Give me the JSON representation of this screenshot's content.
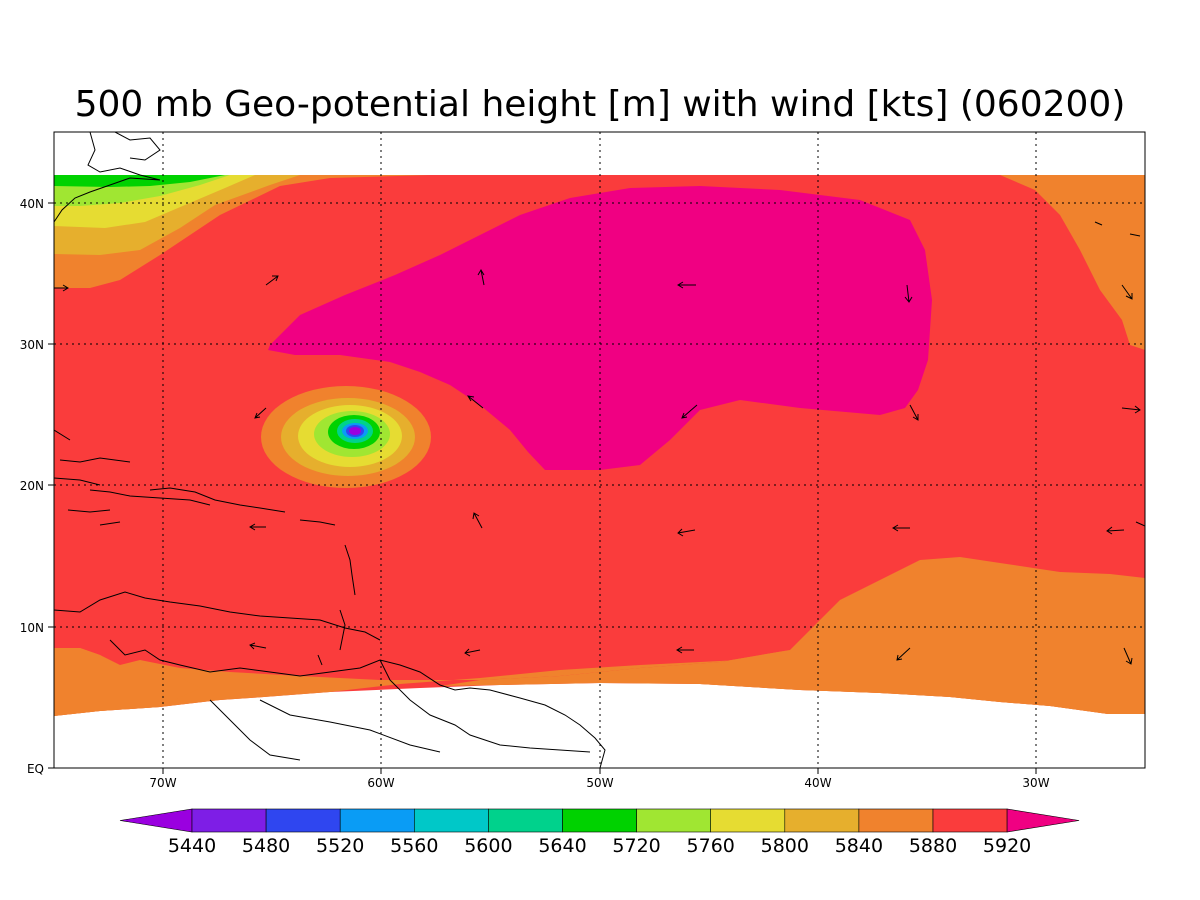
{
  "title": "500 mb Geo-potential height [m] with wind [kts] (060200)",
  "axes": {
    "x_ticks": [
      "70W",
      "60W",
      "50W",
      "40W",
      "30W"
    ],
    "y_ticks": [
      "EQ",
      "10N",
      "20N",
      "30N",
      "40N"
    ]
  },
  "colorbar": {
    "labels": [
      "5440",
      "5480",
      "5520",
      "5560",
      "5600",
      "5640",
      "5720",
      "5760",
      "5800",
      "5840",
      "5880",
      "5920"
    ],
    "colors": [
      "#9a00e0",
      "#7e1ee6",
      "#2f46f0",
      "#0a9cf5",
      "#00c8c8",
      "#00d28c",
      "#00d200",
      "#a0e632",
      "#e6dc32",
      "#e6af2d",
      "#f0822d",
      "#fa3c3c",
      "#f00082"
    ]
  },
  "chart_data": {
    "type": "heatmap",
    "title": "500 mb Geo-potential height [m] with wind [kts] (060200)",
    "variable": "500 mb geopotential height [m]",
    "overlay": "wind vectors [kts]",
    "valid": "060200",
    "lon_range": [
      -75,
      -25
    ],
    "lat_range": [
      0,
      45
    ],
    "x_ticks": [
      -70,
      -60,
      -50,
      -40,
      -30
    ],
    "y_ticks": [
      0,
      10,
      20,
      30,
      40
    ],
    "grid": "dotted",
    "contour_levels": [
      5440,
      5480,
      5520,
      5560,
      5600,
      5640,
      5720,
      5760,
      5800,
      5840,
      5880,
      5920
    ],
    "features": [
      {
        "kind": "high",
        "lon": -47,
        "lat": 29,
        "value_range": "above 5920"
      },
      {
        "kind": "low",
        "lon": -61,
        "lat": 23.8,
        "value_range": "below 5440"
      }
    ]
  }
}
